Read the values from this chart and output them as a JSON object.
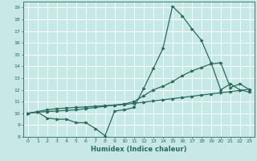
{
  "bg_color": "#c8e8e5",
  "grid_color": "#ffffff",
  "line_color": "#2a6b5a",
  "xlabel": "Humidex (Indice chaleur)",
  "xlim": [
    -0.5,
    23.5
  ],
  "ylim": [
    8,
    19.5
  ],
  "xticks": [
    0,
    1,
    2,
    3,
    4,
    5,
    6,
    7,
    8,
    9,
    10,
    11,
    12,
    13,
    14,
    15,
    16,
    17,
    18,
    19,
    20,
    21,
    22,
    23
  ],
  "yticks": [
    8,
    9,
    10,
    11,
    12,
    13,
    14,
    15,
    16,
    17,
    18,
    19
  ],
  "line1_x": [
    0,
    1,
    2,
    3,
    4,
    5,
    6,
    7,
    8,
    9,
    10,
    11,
    12,
    13,
    14,
    15,
    16,
    17,
    18,
    19,
    20,
    21,
    22,
    23
  ],
  "line1_y": [
    10.0,
    10.15,
    10.3,
    10.4,
    10.45,
    10.5,
    10.55,
    10.6,
    10.65,
    10.7,
    10.75,
    10.85,
    10.95,
    11.05,
    11.15,
    11.25,
    11.35,
    11.45,
    11.55,
    11.65,
    11.75,
    11.85,
    11.95,
    12.05
  ],
  "line2_x": [
    0,
    1,
    2,
    3,
    4,
    5,
    6,
    7,
    8,
    9,
    10,
    11,
    12,
    13,
    14,
    15,
    16,
    17,
    18,
    19,
    20,
    21,
    22,
    23
  ],
  "line2_y": [
    10.0,
    10.1,
    10.15,
    10.2,
    10.25,
    10.3,
    10.4,
    10.5,
    10.6,
    10.7,
    10.8,
    11.0,
    11.5,
    12.0,
    12.3,
    12.7,
    13.2,
    13.6,
    13.9,
    14.2,
    14.3,
    12.2,
    12.5,
    12.0
  ],
  "line3_x": [
    0,
    1,
    2,
    3,
    4,
    5,
    6,
    7,
    8,
    9,
    10,
    11,
    12,
    13,
    14,
    15,
    16,
    17,
    18,
    19,
    20,
    21,
    22,
    23
  ],
  "line3_y": [
    10.0,
    10.1,
    9.6,
    9.5,
    9.5,
    9.2,
    9.2,
    8.7,
    8.1,
    10.2,
    10.3,
    10.5,
    12.1,
    13.8,
    15.5,
    19.1,
    18.3,
    17.2,
    16.2,
    14.3,
    12.0,
    12.5,
    12.0,
    11.8
  ]
}
